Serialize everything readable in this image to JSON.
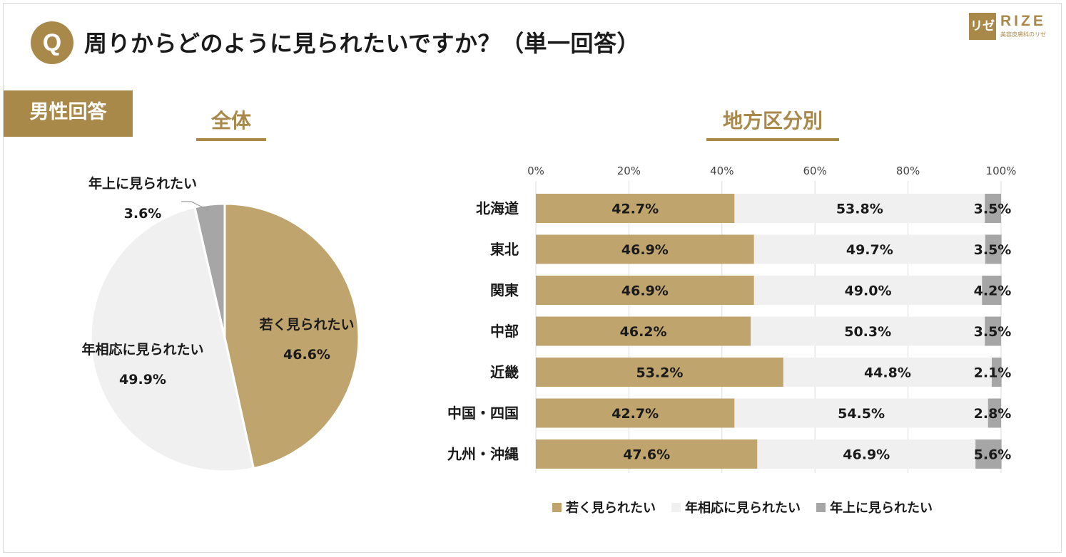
{
  "header": {
    "q_badge": "Q",
    "question": "周りからどのように見られたいですか？（単一回答）"
  },
  "logo": {
    "mark": "リゼ",
    "word": "RIZE",
    "sub": "美容皮膚科のリゼ"
  },
  "section_label": "男性回答",
  "colors": {
    "young": "#bfa46d",
    "age_appropriate": "#f0f0f0",
    "older": "#a6a6a6",
    "accent": "#a8894a"
  },
  "chart_data": [
    {
      "type": "pie",
      "title": "全体",
      "slices": [
        {
          "label": "若く見られたい",
          "value": 46.6,
          "value_label": "46.6%"
        },
        {
          "label": "年相応に見られたい",
          "value": 49.9,
          "value_label": "49.9%"
        },
        {
          "label": "年上に見られたい",
          "value": 3.6,
          "value_label": "3.6%"
        }
      ]
    },
    {
      "type": "bar",
      "stacked": "percent",
      "orientation": "horizontal",
      "title": "地方区分別",
      "categories": [
        "北海道",
        "東北",
        "関東",
        "中部",
        "近畿",
        "中国・四国",
        "九州・沖縄"
      ],
      "series": [
        {
          "name": "若く見られたい",
          "values": [
            42.7,
            46.9,
            46.9,
            46.2,
            53.2,
            42.7,
            47.6
          ],
          "labels": [
            "42.7%",
            "46.9%",
            "46.9%",
            "46.2%",
            "53.2%",
            "42.7%",
            "47.6%"
          ]
        },
        {
          "name": "年相応に見られたい",
          "values": [
            53.8,
            49.7,
            49.0,
            50.3,
            44.8,
            54.5,
            46.9
          ],
          "labels": [
            "53.8%",
            "49.7%",
            "49.0%",
            "50.3%",
            "44.8%",
            "54.5%",
            "46.9%"
          ]
        },
        {
          "name": "年上に見られたい",
          "values": [
            3.5,
            3.5,
            4.2,
            3.5,
            2.1,
            2.8,
            5.6
          ],
          "labels": [
            "3.5%",
            "3.5%",
            "4.2%",
            "3.5%",
            "2.1%",
            "2.8%",
            "5.6%"
          ]
        }
      ],
      "x_ticks": [
        "0%",
        "20%",
        "40%",
        "60%",
        "80%",
        "100%"
      ],
      "xlim": [
        0,
        100
      ],
      "legend": "bottom"
    }
  ]
}
